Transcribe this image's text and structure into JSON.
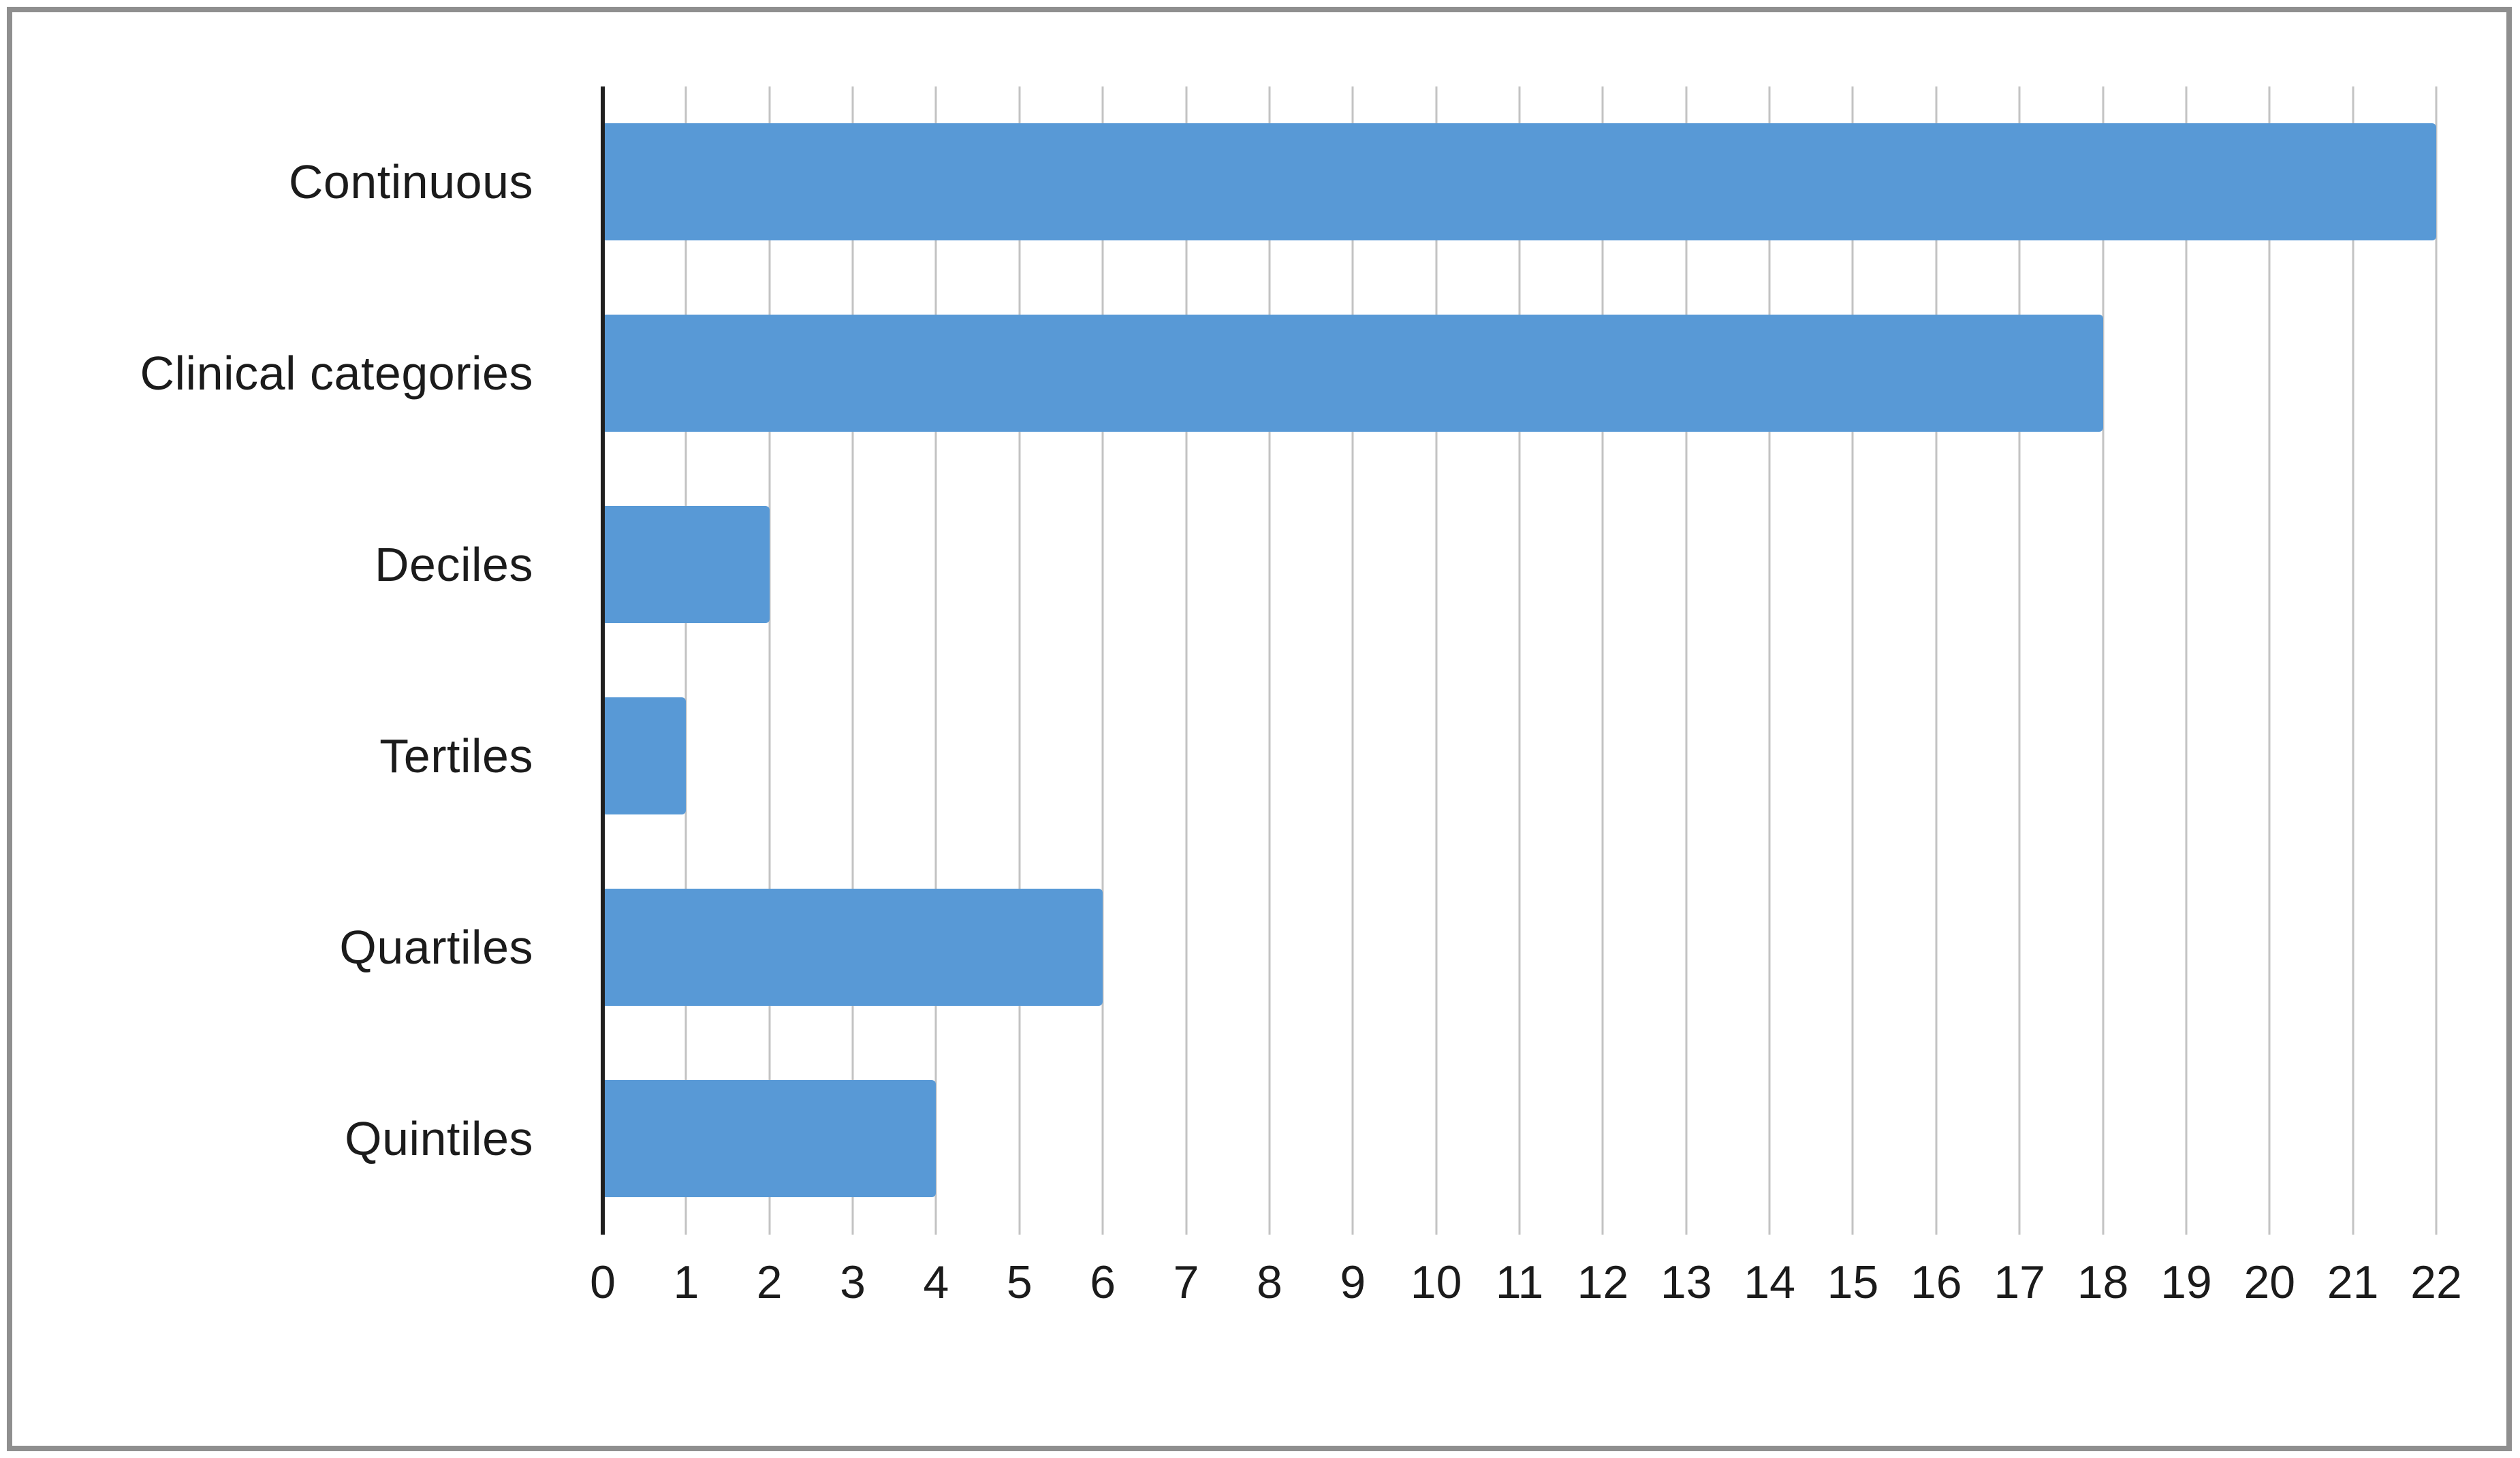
{
  "chart_data": {
    "type": "bar",
    "orientation": "horizontal",
    "title": "",
    "xlabel": "",
    "ylabel": "",
    "categories": [
      "Continuous",
      "Clinical categories",
      "Deciles",
      "Tertiles",
      "Quartiles",
      "Quintiles"
    ],
    "values": [
      22,
      18,
      2,
      1,
      6,
      4
    ],
    "xlim": [
      0,
      22
    ],
    "xticks": [
      "0",
      "1",
      "2",
      "3",
      "4",
      "5",
      "6",
      "7",
      "8",
      "9",
      "10",
      "11",
      "12",
      "13",
      "14",
      "15",
      "16",
      "17",
      "18",
      "19",
      "20",
      "21",
      "22"
    ],
    "grid": "vertical",
    "legend": false,
    "colors": {
      "bar": "#5899D6",
      "gridline": "#c3c3c3",
      "zero_axis": "#1f1f1f",
      "text": "#1b1b1b",
      "frame_border": "#8f8f8f",
      "background": "#ffffff"
    }
  }
}
